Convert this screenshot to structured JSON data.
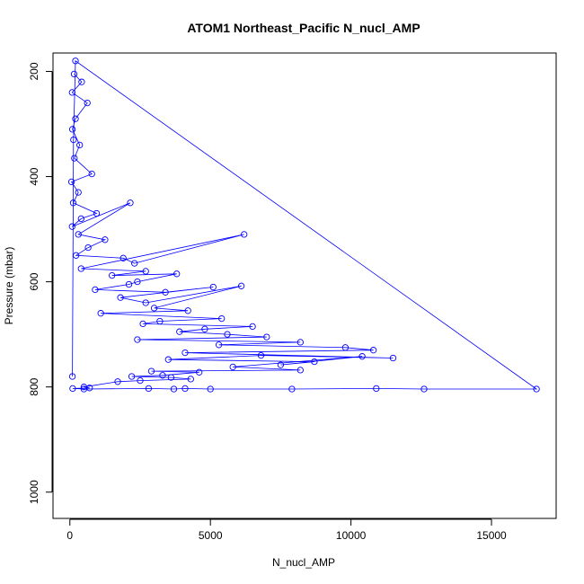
{
  "chart_data": {
    "type": "scatter",
    "title": "ATOM1 Northeast_Pacific N_nucl_AMP",
    "xlabel": "N_nucl_AMP",
    "ylabel": "Pressure (mbar)",
    "xlim": [
      -600,
      17300
    ],
    "ylim": [
      1050,
      165
    ],
    "y_reversed": true,
    "x_ticks": [
      0,
      5000,
      10000,
      15000
    ],
    "y_ticks": [
      200,
      400,
      600,
      800,
      1000
    ],
    "grid": false,
    "legend": "none",
    "point_style": "open-circle-with-connecting-line",
    "colors": {
      "series": "#0000ff",
      "axis": "#000000",
      "background": "#ffffff"
    },
    "series": [
      {
        "x": [
          150,
          420,
          80,
          620,
          200,
          90,
          350,
          160,
          780,
          60,
          300,
          120,
          950,
          400,
          80,
          2150,
          300,
          1250,
          650,
          220,
          1900,
          2300,
          6200,
          400,
          2700,
          1500,
          3800,
          2400,
          2100,
          900,
          3400,
          5100,
          1800,
          2700,
          6100,
          3000,
          4200,
          1100,
          5400,
          3200,
          2600,
          6500,
          4800,
          3900,
          5600,
          7000,
          2400,
          8200,
          5300,
          9800,
          10800,
          4100,
          11500,
          6800,
          3500,
          8700,
          7500,
          10400,
          5800,
          8200,
          2900,
          4600,
          3300,
          2200,
          3600,
          4300,
          2500,
          1700,
          500,
          700,
          100,
          500,
          2800,
          3700,
          4100,
          5000,
          7900,
          10900,
          12600,
          16600,
          200,
          130,
          90
        ],
        "y": [
          205,
          220,
          240,
          260,
          290,
          310,
          340,
          365,
          395,
          410,
          430,
          450,
          470,
          480,
          495,
          450,
          510,
          520,
          535,
          550,
          555,
          565,
          510,
          575,
          580,
          588,
          585,
          600,
          605,
          615,
          620,
          610,
          630,
          640,
          608,
          650,
          655,
          660,
          670,
          675,
          680,
          685,
          690,
          695,
          700,
          705,
          710,
          715,
          720,
          725,
          730,
          735,
          745,
          740,
          748,
          752,
          758,
          742,
          762,
          768,
          770,
          772,
          778,
          780,
          782,
          785,
          788,
          790,
          800,
          802,
          803,
          804,
          803,
          804,
          803,
          804,
          804,
          803,
          804,
          804,
          180,
          330,
          780
        ]
      }
    ]
  }
}
